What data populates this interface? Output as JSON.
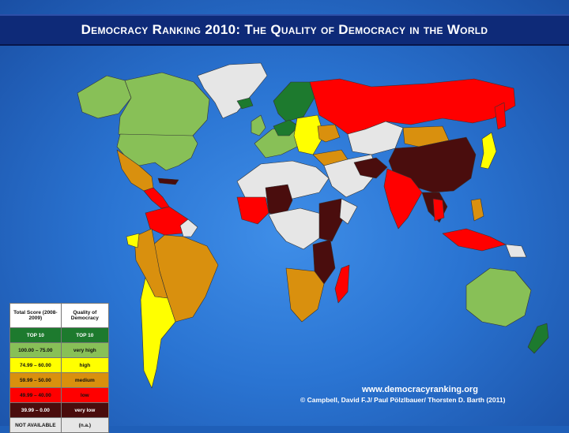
{
  "title": "Democracy Ranking 2010: The Quality of Democracy in the World",
  "legend": {
    "header_score": "Total Score (2008-2009)",
    "header_quality": "Quality of Democracy",
    "rows": [
      {
        "score": "TOP 10",
        "label": "TOP 10",
        "color": "#1d7a2e",
        "text_color": "#ffffff"
      },
      {
        "score": "100.00 – 75.00",
        "label": "very high",
        "color": "#88c057",
        "text_color": "#111111"
      },
      {
        "score": "74.99 – 60.00",
        "label": "high",
        "color": "#ffff00",
        "text_color": "#111111"
      },
      {
        "score": "59.99 – 50.00",
        "label": "medium",
        "color": "#d9900e",
        "text_color": "#111111"
      },
      {
        "score": "49.99 – 40.00",
        "label": "low",
        "color": "#ff0000",
        "text_color": "#111111"
      },
      {
        "score": "39.99 – 0.00",
        "label": "very low",
        "color": "#4a0d0d",
        "text_color": "#ffffff"
      },
      {
        "score": "NOT AVAILABLE",
        "label": "(n.a.)",
        "color": "#e6e6e6",
        "text_color": "#111111"
      }
    ]
  },
  "credits": {
    "website": "www.democracyranking.org",
    "authors": "© Campbell, David F.J/ Paul Pölzlbauer/ Thorsten D. Barth (2011)"
  },
  "colors": {
    "top10": "#1d7a2e",
    "very_high": "#88c057",
    "high": "#ffff00",
    "medium": "#d9900e",
    "low": "#ff0000",
    "very_low": "#4a0d0d",
    "not_available": "#e6e6e6",
    "ocean": "#2a74d2",
    "title_bar": "#0e2a78"
  }
}
